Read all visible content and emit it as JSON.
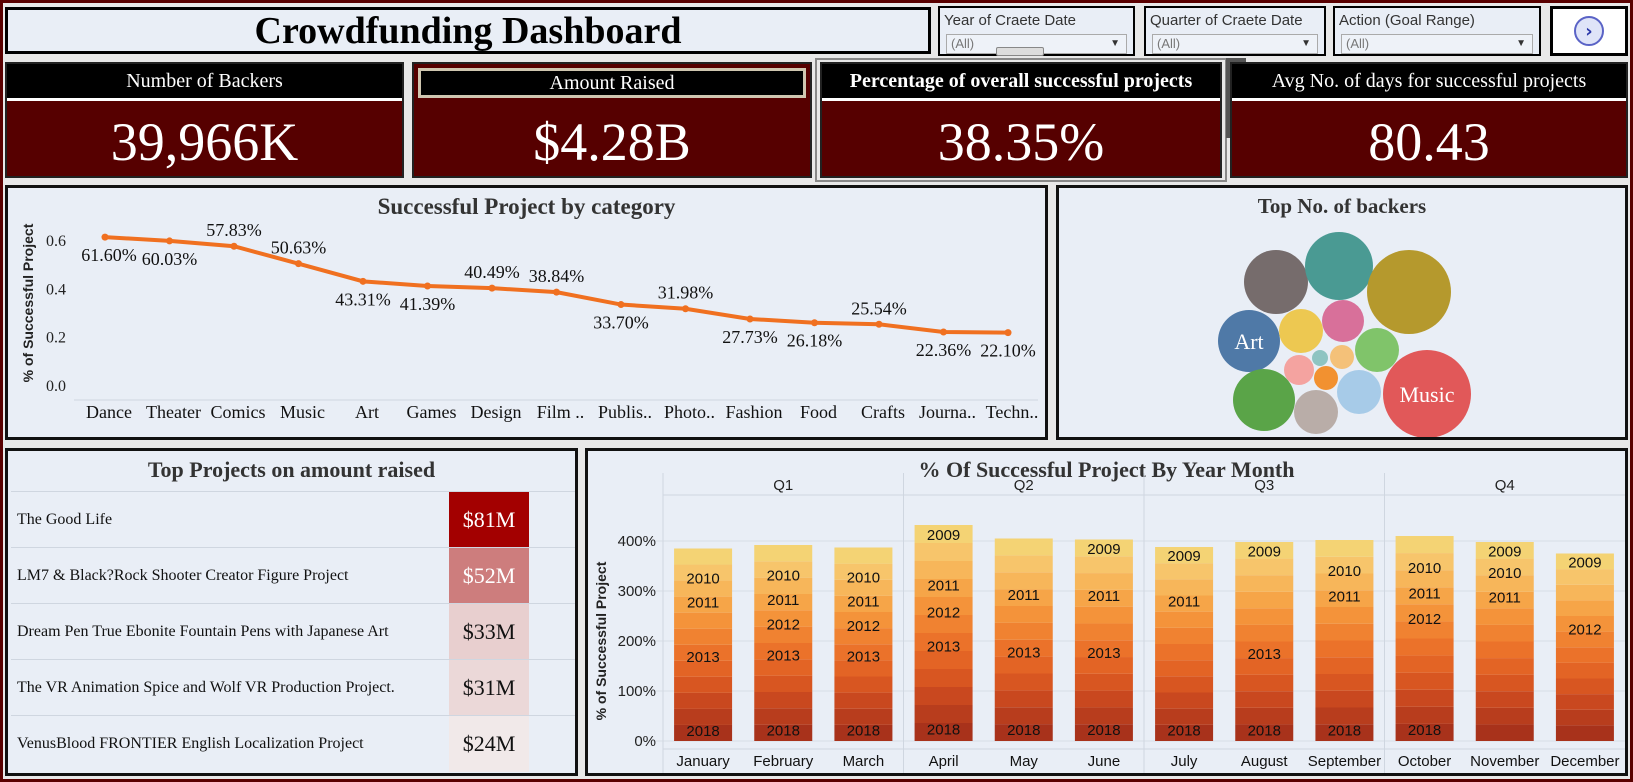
{
  "title": "Crowdfunding Dashboard",
  "filters": [
    {
      "label": "Year of Craete Date",
      "value": "(All)"
    },
    {
      "label": "Quarter of Craete Date",
      "value": "(All)"
    },
    {
      "label": "Action (Goal Range)",
      "value": "(All)"
    }
  ],
  "kpis": [
    {
      "label": "Number of Backers",
      "value": "39,966K"
    },
    {
      "label": "Amount Raised",
      "value": "$4.28B"
    },
    {
      "label": "Percentage of overall successful projects",
      "value": "38.35%"
    },
    {
      "label": "Avg No. of days for successful projects",
      "value": "80.43"
    }
  ],
  "colors": {
    "kpi_bg": "#560000",
    "line": "#f07020",
    "accent": "#a30000"
  },
  "category_chart": {
    "title": "Successful Project by category",
    "ylabel": "% of Successful Project",
    "yticks": [
      "0.0",
      "0.2",
      "0.4",
      "0.6"
    ]
  },
  "bubbles": {
    "title": "Top No. of backers",
    "labels": [
      "Art",
      "Music"
    ]
  },
  "top_projects": {
    "title": "Top Projects on amount raised",
    "rows": [
      {
        "name": "The Good Life",
        "amount": "$81M",
        "value": 81
      },
      {
        "name": "LM7 & Black?Rock Shooter Creator Figure Project",
        "amount": "$52M",
        "value": 52
      },
      {
        "name": "Dream Pen  True Ebonite Fountain Pens with Japanese Art",
        "amount": "$33M",
        "value": 33
      },
      {
        "name": "The VR Animation Spice and Wolf VR Production Project.",
        "amount": "$31M",
        "value": 31
      },
      {
        "name": "VenusBlood FRONTIER English Localization Project",
        "amount": "$24M",
        "value": 24
      }
    ]
  },
  "month_chart": {
    "title": "% Of Successful Project By Year Month",
    "ylabel": "% of Successful Project",
    "yticks": [
      "0%",
      "100%",
      "200%",
      "300%",
      "400%"
    ],
    "quarters": [
      "Q1",
      "Q2",
      "Q3",
      "Q4"
    ],
    "months": [
      {
        "label": "January",
        "total": 385,
        "labels": [
          "2010",
          "2011",
          "2013",
          "2018"
        ]
      },
      {
        "label": "February",
        "total": 392,
        "labels": [
          "2010",
          "2011",
          "2012",
          "2013",
          "2018"
        ]
      },
      {
        "label": "March",
        "total": 387,
        "labels": [
          "2010",
          "2011",
          "2012",
          "2013",
          "2018"
        ]
      },
      {
        "label": "April",
        "total": 432,
        "labels": [
          "2009",
          "2011",
          "2012",
          "2013",
          "2018"
        ]
      },
      {
        "label": "May",
        "total": 405,
        "labels": [
          "2011",
          "2013",
          "2018"
        ]
      },
      {
        "label": "June",
        "total": 403,
        "labels": [
          "2009",
          "2011",
          "2013",
          "2018"
        ]
      },
      {
        "label": "July",
        "total": 388,
        "labels": [
          "2009",
          "2011",
          "2018"
        ]
      },
      {
        "label": "August",
        "total": 398,
        "labels": [
          "2009",
          "2013",
          "2018"
        ]
      },
      {
        "label": "September",
        "total": 402,
        "labels": [
          "2010",
          "2011",
          "2018"
        ]
      },
      {
        "label": "October",
        "total": 410,
        "labels": [
          "2010",
          "2011",
          "2012",
          "2018"
        ]
      },
      {
        "label": "November",
        "total": 398,
        "labels": [
          "2009",
          "2010",
          "2011"
        ]
      },
      {
        "label": "December",
        "total": 375,
        "labels": [
          "2009",
          "2012"
        ]
      }
    ]
  },
  "chart_data": [
    {
      "type": "line",
      "title": "Successful Project by category",
      "xlabel": "",
      "ylabel": "% of Successful Project",
      "ylim": [
        0,
        0.7
      ],
      "categories": [
        "Dance",
        "Theater",
        "Comics",
        "Music",
        "Art",
        "Games",
        "Design",
        "Film ..",
        "Publis..",
        "Photo..",
        "Fashion",
        "Food",
        "Crafts",
        "Journa..",
        "Techn.."
      ],
      "values": [
        0.616,
        0.6003,
        0.5783,
        0.5063,
        0.4331,
        0.4139,
        0.4049,
        0.3884,
        0.337,
        0.3198,
        0.2773,
        0.2618,
        0.2554,
        0.2236,
        0.221
      ],
      "data_labels": [
        "61.60%",
        "60.03%",
        "57.83%",
        "50.63%",
        "43.31%",
        "41.39%",
        "40.49%",
        "38.84%",
        "33.70%",
        "31.98%",
        "27.73%",
        "26.18%",
        "25.54%",
        "22.36%",
        "22.10%"
      ]
    },
    {
      "type": "bar",
      "title": "% Of Successful Project By Year Month",
      "ylabel": "% of Successful Project",
      "ylim": [
        0,
        450
      ],
      "categories": [
        "January",
        "February",
        "March",
        "April",
        "May",
        "June",
        "July",
        "August",
        "September",
        "October",
        "November",
        "December"
      ],
      "values": [
        385,
        392,
        387,
        432,
        405,
        403,
        388,
        398,
        402,
        410,
        398,
        375
      ]
    }
  ]
}
